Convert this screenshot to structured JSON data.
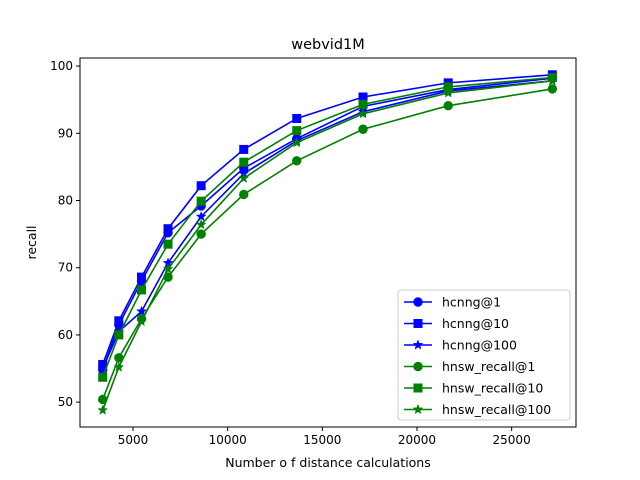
{
  "chart_data": {
    "type": "line",
    "title": "webvid1M",
    "xlabel": "Number o f distance calculations",
    "ylabel": "recall",
    "xlim": [
      2200,
      28400
    ],
    "ylim": [
      46.3,
      101.2
    ],
    "xticks": [
      5000,
      10000,
      15000,
      20000,
      25000
    ],
    "yticks": [
      50,
      60,
      70,
      80,
      90,
      100
    ],
    "grid": false,
    "legend_position": "lower right",
    "series": [
      {
        "name": "hcnng@1",
        "color": "#0000ff",
        "marker": "circle",
        "x": [
          3400,
          4250,
          5450,
          6850,
          8600,
          10850,
          13650,
          17150,
          21650,
          27150
        ],
        "y": [
          54.8,
          61.5,
          68.0,
          75.2,
          79.2,
          84.8,
          89.2,
          94.0,
          96.5,
          98.2
        ]
      },
      {
        "name": "hcnng@10",
        "color": "#0000ff",
        "marker": "square",
        "x": [
          3400,
          4250,
          5450,
          6850,
          8600,
          10850,
          13650,
          17150,
          21650,
          27150
        ],
        "y": [
          55.6,
          62.1,
          68.6,
          75.8,
          82.2,
          87.6,
          92.2,
          95.4,
          97.5,
          98.7
        ]
      },
      {
        "name": "hcnng@100",
        "color": "#0000ff",
        "marker": "star",
        "x": [
          3400,
          4250,
          5450,
          6850,
          8600,
          10850,
          13650,
          17150,
          21650,
          27150
        ],
        "y": [
          55.0,
          60.5,
          63.5,
          70.7,
          77.6,
          84.0,
          88.9,
          93.2,
          96.3,
          97.8
        ]
      },
      {
        "name": "hnsw_recall@1",
        "color": "#008000",
        "marker": "circle",
        "x": [
          3400,
          4250,
          5450,
          6850,
          8600,
          10850,
          13650,
          17150,
          21650,
          27150
        ],
        "y": [
          50.4,
          56.6,
          62.4,
          68.6,
          75.0,
          80.9,
          85.9,
          90.6,
          94.1,
          96.6
        ]
      },
      {
        "name": "hnsw_recall@10",
        "color": "#008000",
        "marker": "square",
        "x": [
          3400,
          4250,
          5450,
          6850,
          8600,
          10850,
          13650,
          17150,
          21650,
          27150
        ],
        "y": [
          53.7,
          60.0,
          66.7,
          73.5,
          79.9,
          85.7,
          90.4,
          94.3,
          96.9,
          98.3
        ]
      },
      {
        "name": "hnsw_recall@100",
        "color": "#008000",
        "marker": "star",
        "x": [
          3400,
          4250,
          5450,
          6850,
          8600,
          10850,
          13650,
          17150,
          21650,
          27150
        ],
        "y": [
          48.8,
          55.2,
          62.0,
          69.8,
          76.4,
          83.3,
          88.6,
          92.9,
          96.0,
          97.8
        ]
      }
    ]
  }
}
